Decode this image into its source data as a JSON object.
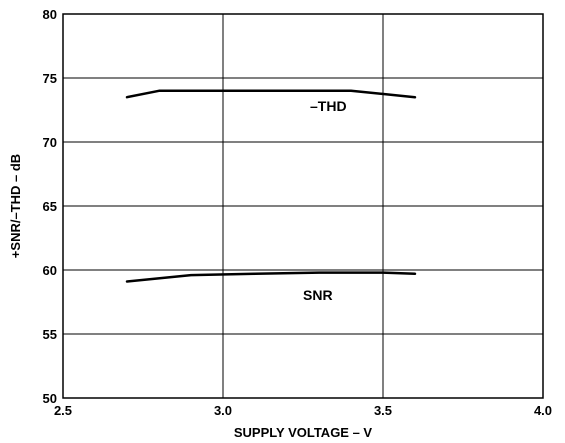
{
  "chart_data": {
    "type": "line",
    "title": "",
    "xlabel": "SUPPLY VOLTAGE – V",
    "ylabel": "+SNR/–THD – dB",
    "xlim": [
      2.5,
      4.0
    ],
    "ylim": [
      50,
      80
    ],
    "x_ticks": [
      2.5,
      3.0,
      3.5,
      4.0
    ],
    "x_tick_labels": [
      "2.5",
      "3.0",
      "3.5",
      "4.0"
    ],
    "y_ticks": [
      50,
      55,
      60,
      65,
      70,
      75,
      80
    ],
    "y_tick_labels": [
      "50",
      "55",
      "60",
      "65",
      "70",
      "75",
      "80"
    ],
    "grid": true,
    "series": [
      {
        "name": "–THD",
        "x": [
          2.7,
          2.8,
          3.0,
          3.2,
          3.4,
          3.6
        ],
        "y": [
          73.5,
          74.0,
          74.0,
          74.0,
          74.0,
          73.5
        ]
      },
      {
        "name": "SNR",
        "x": [
          2.7,
          2.9,
          3.1,
          3.3,
          3.5,
          3.6
        ],
        "y": [
          59.1,
          59.6,
          59.7,
          59.8,
          59.8,
          59.7
        ]
      }
    ]
  }
}
